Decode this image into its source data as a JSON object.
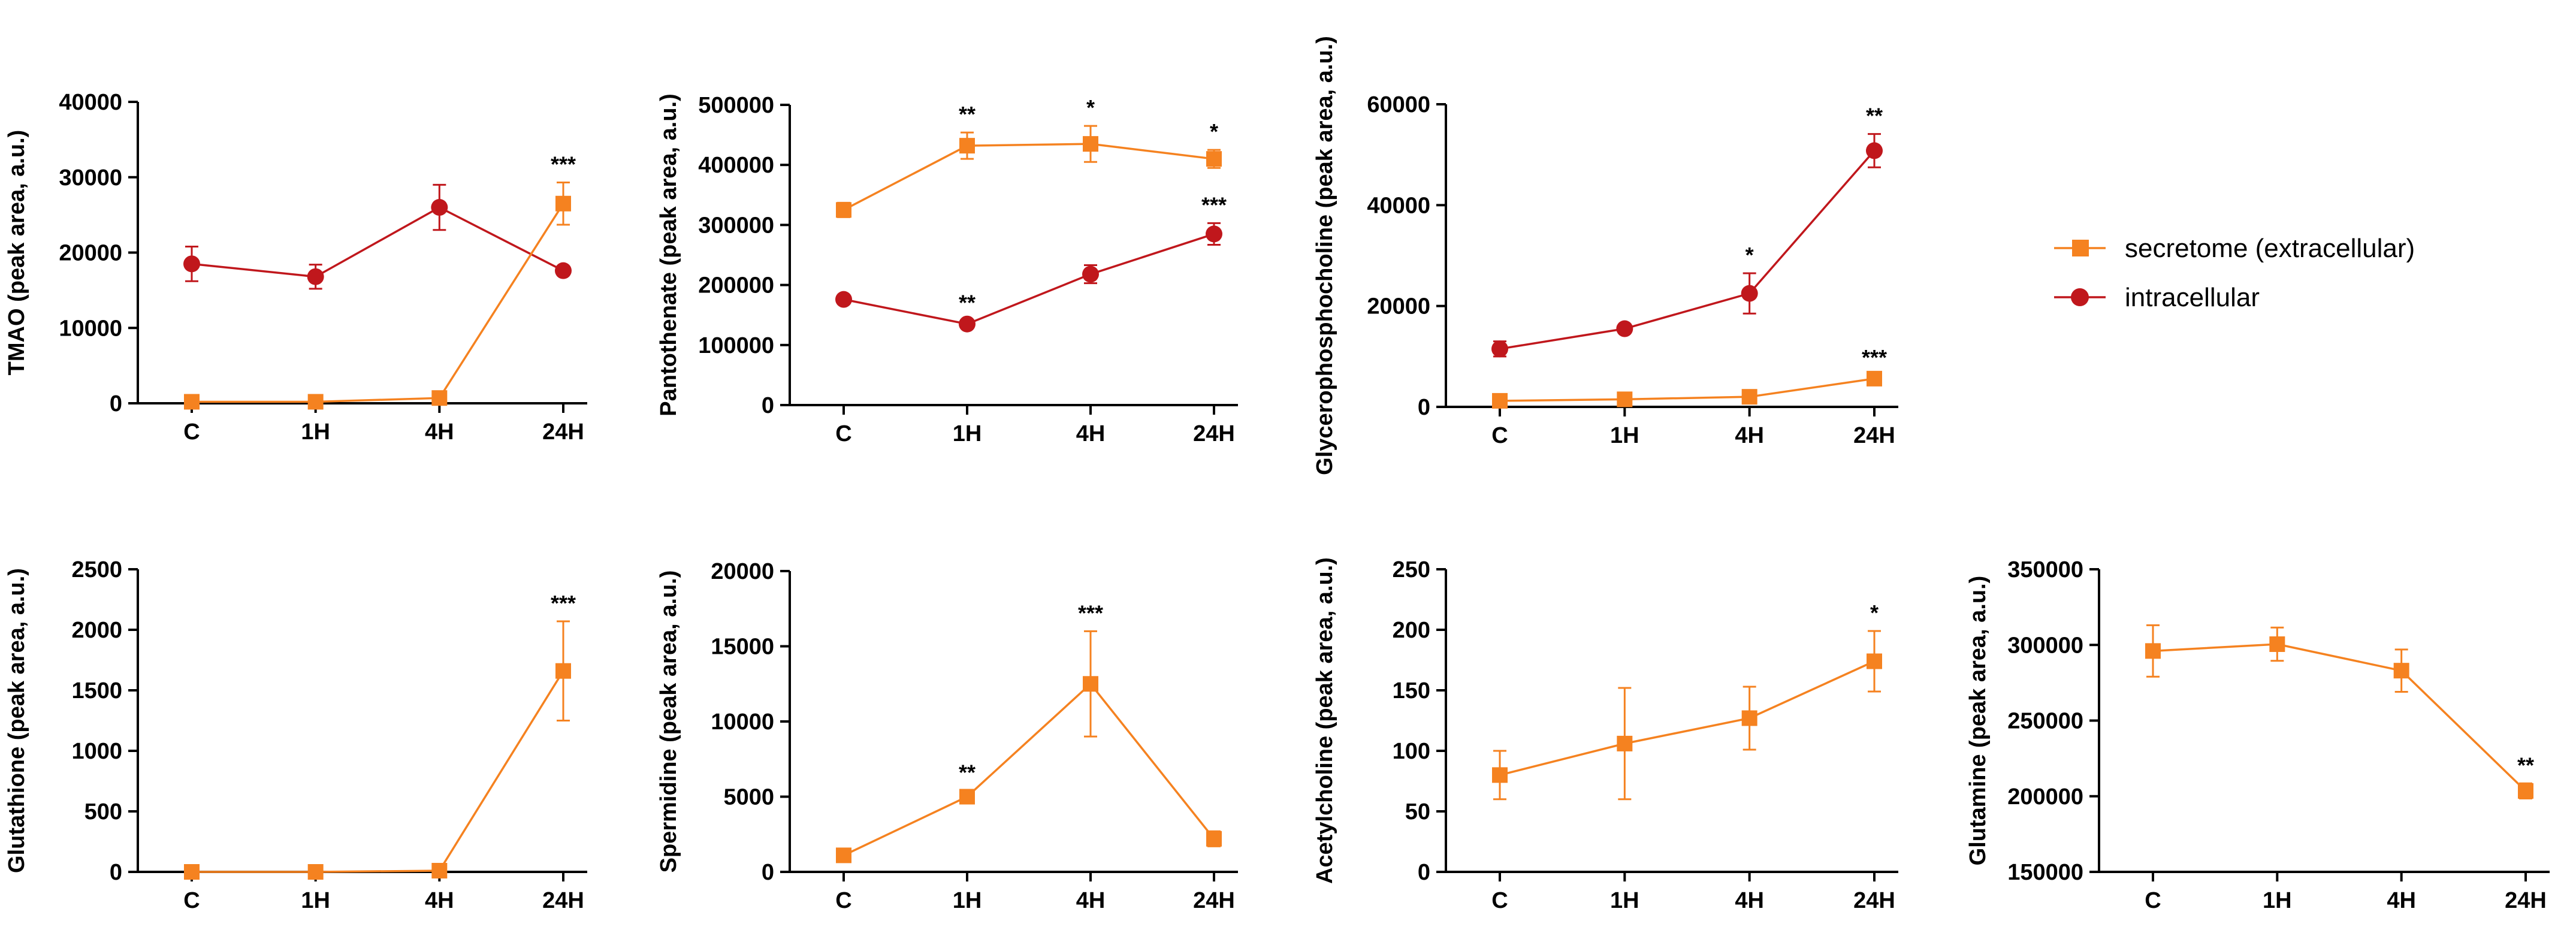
{
  "chart_data": {
    "type": "line",
    "legend": {
      "placement": "right",
      "entries": [
        {
          "key": "secretome",
          "label": "secretome (extracellular)",
          "color": "#F58220",
          "marker": "square"
        },
        {
          "key": "intracellular",
          "label": "intracellular",
          "color": "#C0171C",
          "marker": "circle"
        }
      ]
    },
    "panels": [
      {
        "id": "tmao",
        "ylabel": "TMAO (peak area, a.u.)",
        "categories": [
          "C",
          "1H",
          "4H",
          "24H"
        ],
        "ylim": [
          0,
          40000
        ],
        "yticks": [
          0,
          10000,
          20000,
          30000,
          40000
        ],
        "series": [
          {
            "key": "intracellular",
            "values": [
              18500,
              16800,
              26000,
              17600
            ],
            "errors": [
              2300,
              1600,
              3000,
              300
            ],
            "sig": [
              "",
              "",
              "",
              ""
            ]
          },
          {
            "key": "secretome",
            "values": [
              200,
              200,
              700,
              26500
            ],
            "errors": [
              100,
              100,
              200,
              2800
            ],
            "sig": [
              "",
              "",
              "",
              "***"
            ]
          }
        ]
      },
      {
        "id": "pantothenate",
        "ylabel": "Pantothenate (peak area, a.u.)",
        "categories": [
          "C",
          "1H",
          "4H",
          "24H"
        ],
        "ylim": [
          0,
          500000
        ],
        "yticks": [
          0,
          100000,
          200000,
          300000,
          400000,
          500000
        ],
        "series": [
          {
            "key": "secretome",
            "values": [
              325000,
              432000,
              435000,
              410000
            ],
            "errors": [
              12000,
              22000,
              30000,
              15000
            ],
            "sig": [
              "",
              "**",
              "*",
              "*"
            ]
          },
          {
            "key": "intracellular",
            "values": [
              176000,
              135000,
              218000,
              285000
            ],
            "errors": [
              5000,
              5000,
              15000,
              18000
            ],
            "sig": [
              "",
              "**",
              "",
              "***"
            ]
          }
        ]
      },
      {
        "id": "glycerophosphocholine",
        "ylabel": "Glycerophosphocholine (peak area, a.u.)",
        "categories": [
          "C",
          "1H",
          "4H",
          "24H"
        ],
        "ylim": [
          0,
          60000
        ],
        "yticks": [
          0,
          20000,
          40000,
          60000
        ],
        "series": [
          {
            "key": "intracellular",
            "values": [
              11500,
              15500,
              22500,
              50800
            ],
            "errors": [
              1500,
              600,
              4000,
              3300
            ],
            "sig": [
              "",
              "",
              "*",
              "**"
            ]
          },
          {
            "key": "secretome",
            "values": [
              1200,
              1500,
              2000,
              5600
            ],
            "errors": [
              200,
              200,
              300,
              600
            ],
            "sig": [
              "",
              "",
              "",
              "***"
            ]
          }
        ]
      },
      {
        "id": "glutathione",
        "ylabel": "Glutathione (peak area, a.u.)",
        "categories": [
          "C",
          "1H",
          "4H",
          "24H"
        ],
        "ylim": [
          0,
          2500
        ],
        "yticks": [
          0,
          500,
          1000,
          1500,
          2000,
          2500
        ],
        "series": [
          {
            "key": "secretome",
            "values": [
              0,
              0,
              10,
              1660
            ],
            "errors": [
              5,
              5,
              10,
              410
            ],
            "sig": [
              "",
              "",
              "",
              "***"
            ]
          }
        ]
      },
      {
        "id": "spermidine",
        "ylabel": "Spermidine (peak area, a.u.)",
        "categories": [
          "C",
          "1H",
          "4H",
          "24H"
        ],
        "ylim": [
          0,
          20000
        ],
        "yticks": [
          0,
          5000,
          10000,
          15000,
          20000
        ],
        "series": [
          {
            "key": "secretome",
            "values": [
              1100,
              5000,
              12500,
              2200
            ],
            "errors": [
              200,
              400,
              3500,
              500
            ],
            "sig": [
              "",
              "**",
              "***",
              ""
            ]
          }
        ]
      },
      {
        "id": "acetylcholine",
        "ylabel": "Acetylcholine (peak area, a.u.)",
        "categories": [
          "C",
          "1H",
          "4H",
          "24H"
        ],
        "ylim": [
          0,
          250
        ],
        "yticks": [
          0,
          50,
          100,
          150,
          200,
          250
        ],
        "series": [
          {
            "key": "secretome",
            "values": [
              80,
              106,
              127,
              174
            ],
            "errors": [
              20,
              46,
              26,
              25
            ],
            "sig": [
              "",
              "",
              "",
              "*"
            ]
          }
        ]
      },
      {
        "id": "glutamine",
        "ylabel": "Glutamine (peak area, a.u.)",
        "categories": [
          "C",
          "1H",
          "4H",
          "24H"
        ],
        "ylim": [
          150000,
          350000
        ],
        "yticks": [
          150000,
          200000,
          250000,
          300000,
          350000
        ],
        "series": [
          {
            "key": "secretome",
            "values": [
              296000,
              300500,
              283000,
              203500
            ],
            "errors": [
              17000,
              11000,
              14000,
              5000
            ],
            "sig": [
              "",
              "",
              "",
              "**"
            ]
          }
        ]
      }
    ]
  }
}
